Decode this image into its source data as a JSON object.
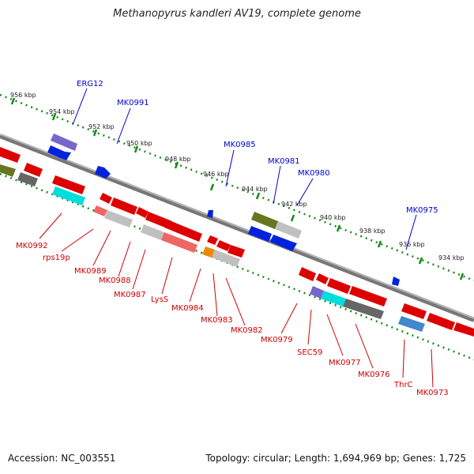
{
  "title": "Methanopyrus kandleri AV19, complete genome",
  "accession": "Accession: NC_003551",
  "summary": "Topology: circular; Length: 1,694,969 bp; Genes: 1,725",
  "colors": {
    "forward_label": "#0000cc",
    "reverse_label": "#cc0000",
    "backbone": "#888888",
    "tick": "#1a8a1a"
  },
  "kbp_ticks": [
    "956 kbp",
    "954 kbp",
    "952 kbp",
    "950 kbp",
    "948 kbp",
    "946 kbp",
    "944 kbp",
    "942 kbp",
    "940 kbp",
    "938 kbp",
    "936 kbp",
    "934 kbp"
  ],
  "forward_genes": [
    "ERG12",
    "MK0991",
    "MK0985",
    "MK0981",
    "MK0980",
    "MK0975"
  ],
  "reverse_genes": [
    "MK0992",
    "rps19p",
    "MK0989",
    "MK0988",
    "MK0987",
    "LysS",
    "MK0984",
    "MK0983",
    "MK0982",
    "MK0979",
    "SEC59",
    "MK0977",
    "MK0976",
    "ThrC",
    "MK0973"
  ]
}
